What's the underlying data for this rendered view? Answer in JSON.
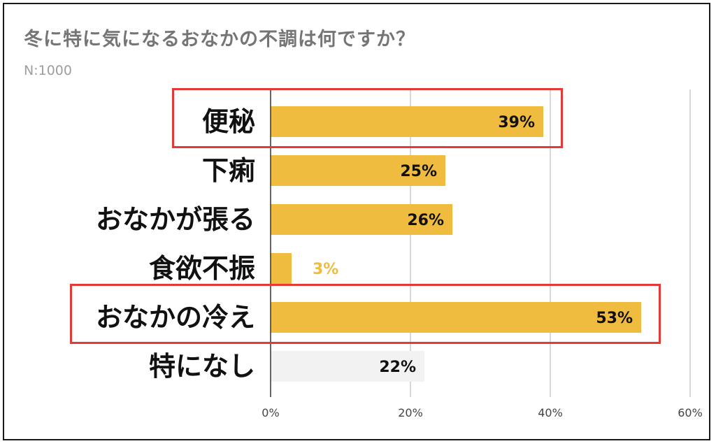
{
  "title": "冬に特に気になるおなかの不調は何ですか？",
  "subtitle": "N:1000",
  "colors": {
    "bar": "#f0bc40",
    "bar_none": "#f2f2f2",
    "grid": "#cccccc",
    "axis": "#333333",
    "highlight": "#e53935",
    "label_outside": "#f0bc40",
    "label_inside": "#111111",
    "tick": "#444444"
  },
  "chart_data": {
    "type": "bar",
    "orientation": "horizontal",
    "title": "冬に特に気になるおなかの不調は何ですか？",
    "subtitle": "N:1000",
    "categories": [
      "便秘",
      "下痢",
      "おなかが張る",
      "食欲不振",
      "おなかの冷え",
      "特になし"
    ],
    "values": [
      39,
      25,
      26,
      3,
      53,
      22
    ],
    "value_labels": [
      "39%",
      "25%",
      "26%",
      "3%",
      "53%",
      "22%"
    ],
    "xlim": [
      0,
      60
    ],
    "xticks": [
      0,
      20,
      40,
      60
    ],
    "xtick_labels": [
      "0%",
      "20%",
      "40%",
      "60%"
    ],
    "grid": true,
    "highlighted_categories": [
      "便秘",
      "おなかの冷え"
    ]
  }
}
